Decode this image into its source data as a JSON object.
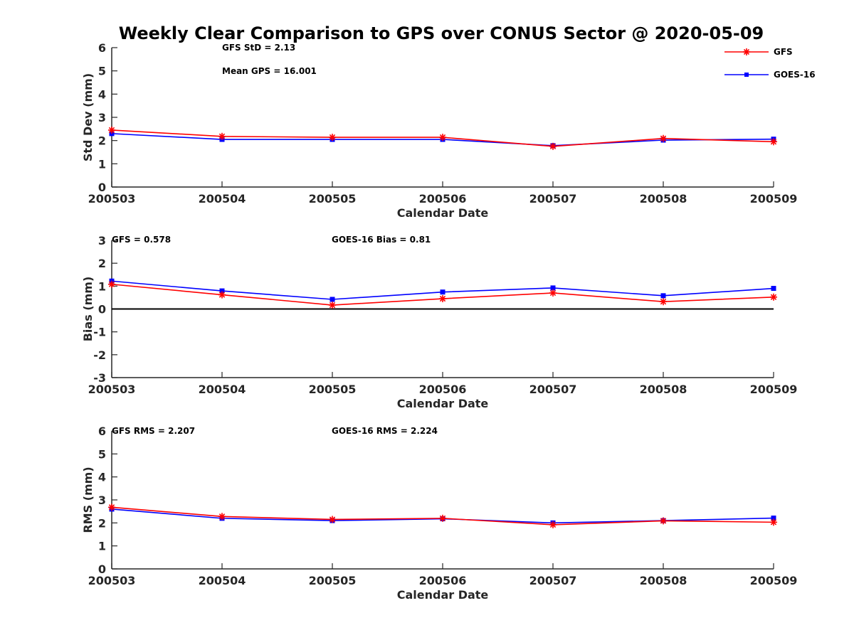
{
  "chart_data": [
    {
      "type": "line",
      "title": "Weekly Clear Comparison to GPS over CONUS Sector @ 2020-05-09",
      "xlabel": "Calendar Date",
      "ylabel": "Std Dev (mm)",
      "ylim": [
        0,
        6
      ],
      "yticks": [
        "0",
        "1",
        "2",
        "3",
        "4",
        "5",
        "6"
      ],
      "categories": [
        "200503",
        "200504",
        "200505",
        "200506",
        "200507",
        "200508",
        "200509"
      ],
      "series": [
        {
          "name": "GFS",
          "color": "#ff0000",
          "marker": "asterisk",
          "values": [
            2.45,
            2.18,
            2.14,
            2.14,
            1.75,
            2.09,
            1.95
          ]
        },
        {
          "name": "GOES-16",
          "color": "#0000ff",
          "marker": "square",
          "values": [
            2.3,
            2.05,
            2.05,
            2.05,
            1.78,
            2.02,
            2.06
          ]
        }
      ],
      "annotations": [
        "GFS StD = 2.13",
        "Mean GPS = 16.001"
      ],
      "legend": {
        "placement": "top-right",
        "entries": [
          "GFS",
          "GOES-16"
        ]
      },
      "grid": false
    },
    {
      "type": "line",
      "xlabel": "Calendar Date",
      "ylabel": "Bias (mm)",
      "ylim": [
        -3,
        3
      ],
      "yticks": [
        "-3",
        "-2",
        "-1",
        "0",
        "1",
        "2",
        "3"
      ],
      "zero_line": true,
      "categories": [
        "200503",
        "200504",
        "200505",
        "200506",
        "200507",
        "200508",
        "200509"
      ],
      "series": [
        {
          "name": "GFS",
          "color": "#ff0000",
          "marker": "asterisk",
          "values": [
            1.08,
            0.62,
            0.17,
            0.45,
            0.7,
            0.32,
            0.52
          ]
        },
        {
          "name": "GOES-16",
          "color": "#0000ff",
          "marker": "square",
          "values": [
            1.22,
            0.79,
            0.42,
            0.74,
            0.92,
            0.58,
            0.9
          ]
        }
      ],
      "annotations": [
        "GFS = 0.578",
        "GOES-16 Bias  = 0.81"
      ],
      "grid": false
    },
    {
      "type": "line",
      "xlabel": "Calendar Date",
      "ylabel": "RMS (mm)",
      "ylim": [
        0,
        6
      ],
      "yticks": [
        "0",
        "1",
        "2",
        "3",
        "4",
        "5",
        "6"
      ],
      "categories": [
        "200503",
        "200504",
        "200505",
        "200506",
        "200507",
        "200508",
        "200509"
      ],
      "series": [
        {
          "name": "GFS",
          "color": "#ff0000",
          "marker": "asterisk",
          "values": [
            2.68,
            2.28,
            2.15,
            2.2,
            1.92,
            2.09,
            2.03
          ]
        },
        {
          "name": "GOES-16",
          "color": "#0000ff",
          "marker": "square",
          "values": [
            2.6,
            2.2,
            2.1,
            2.18,
            2.0,
            2.1,
            2.21
          ]
        }
      ],
      "annotations": [
        "GFS RMS = 2.207",
        "GOES-16 RMS = 2.224"
      ],
      "grid": false
    }
  ]
}
